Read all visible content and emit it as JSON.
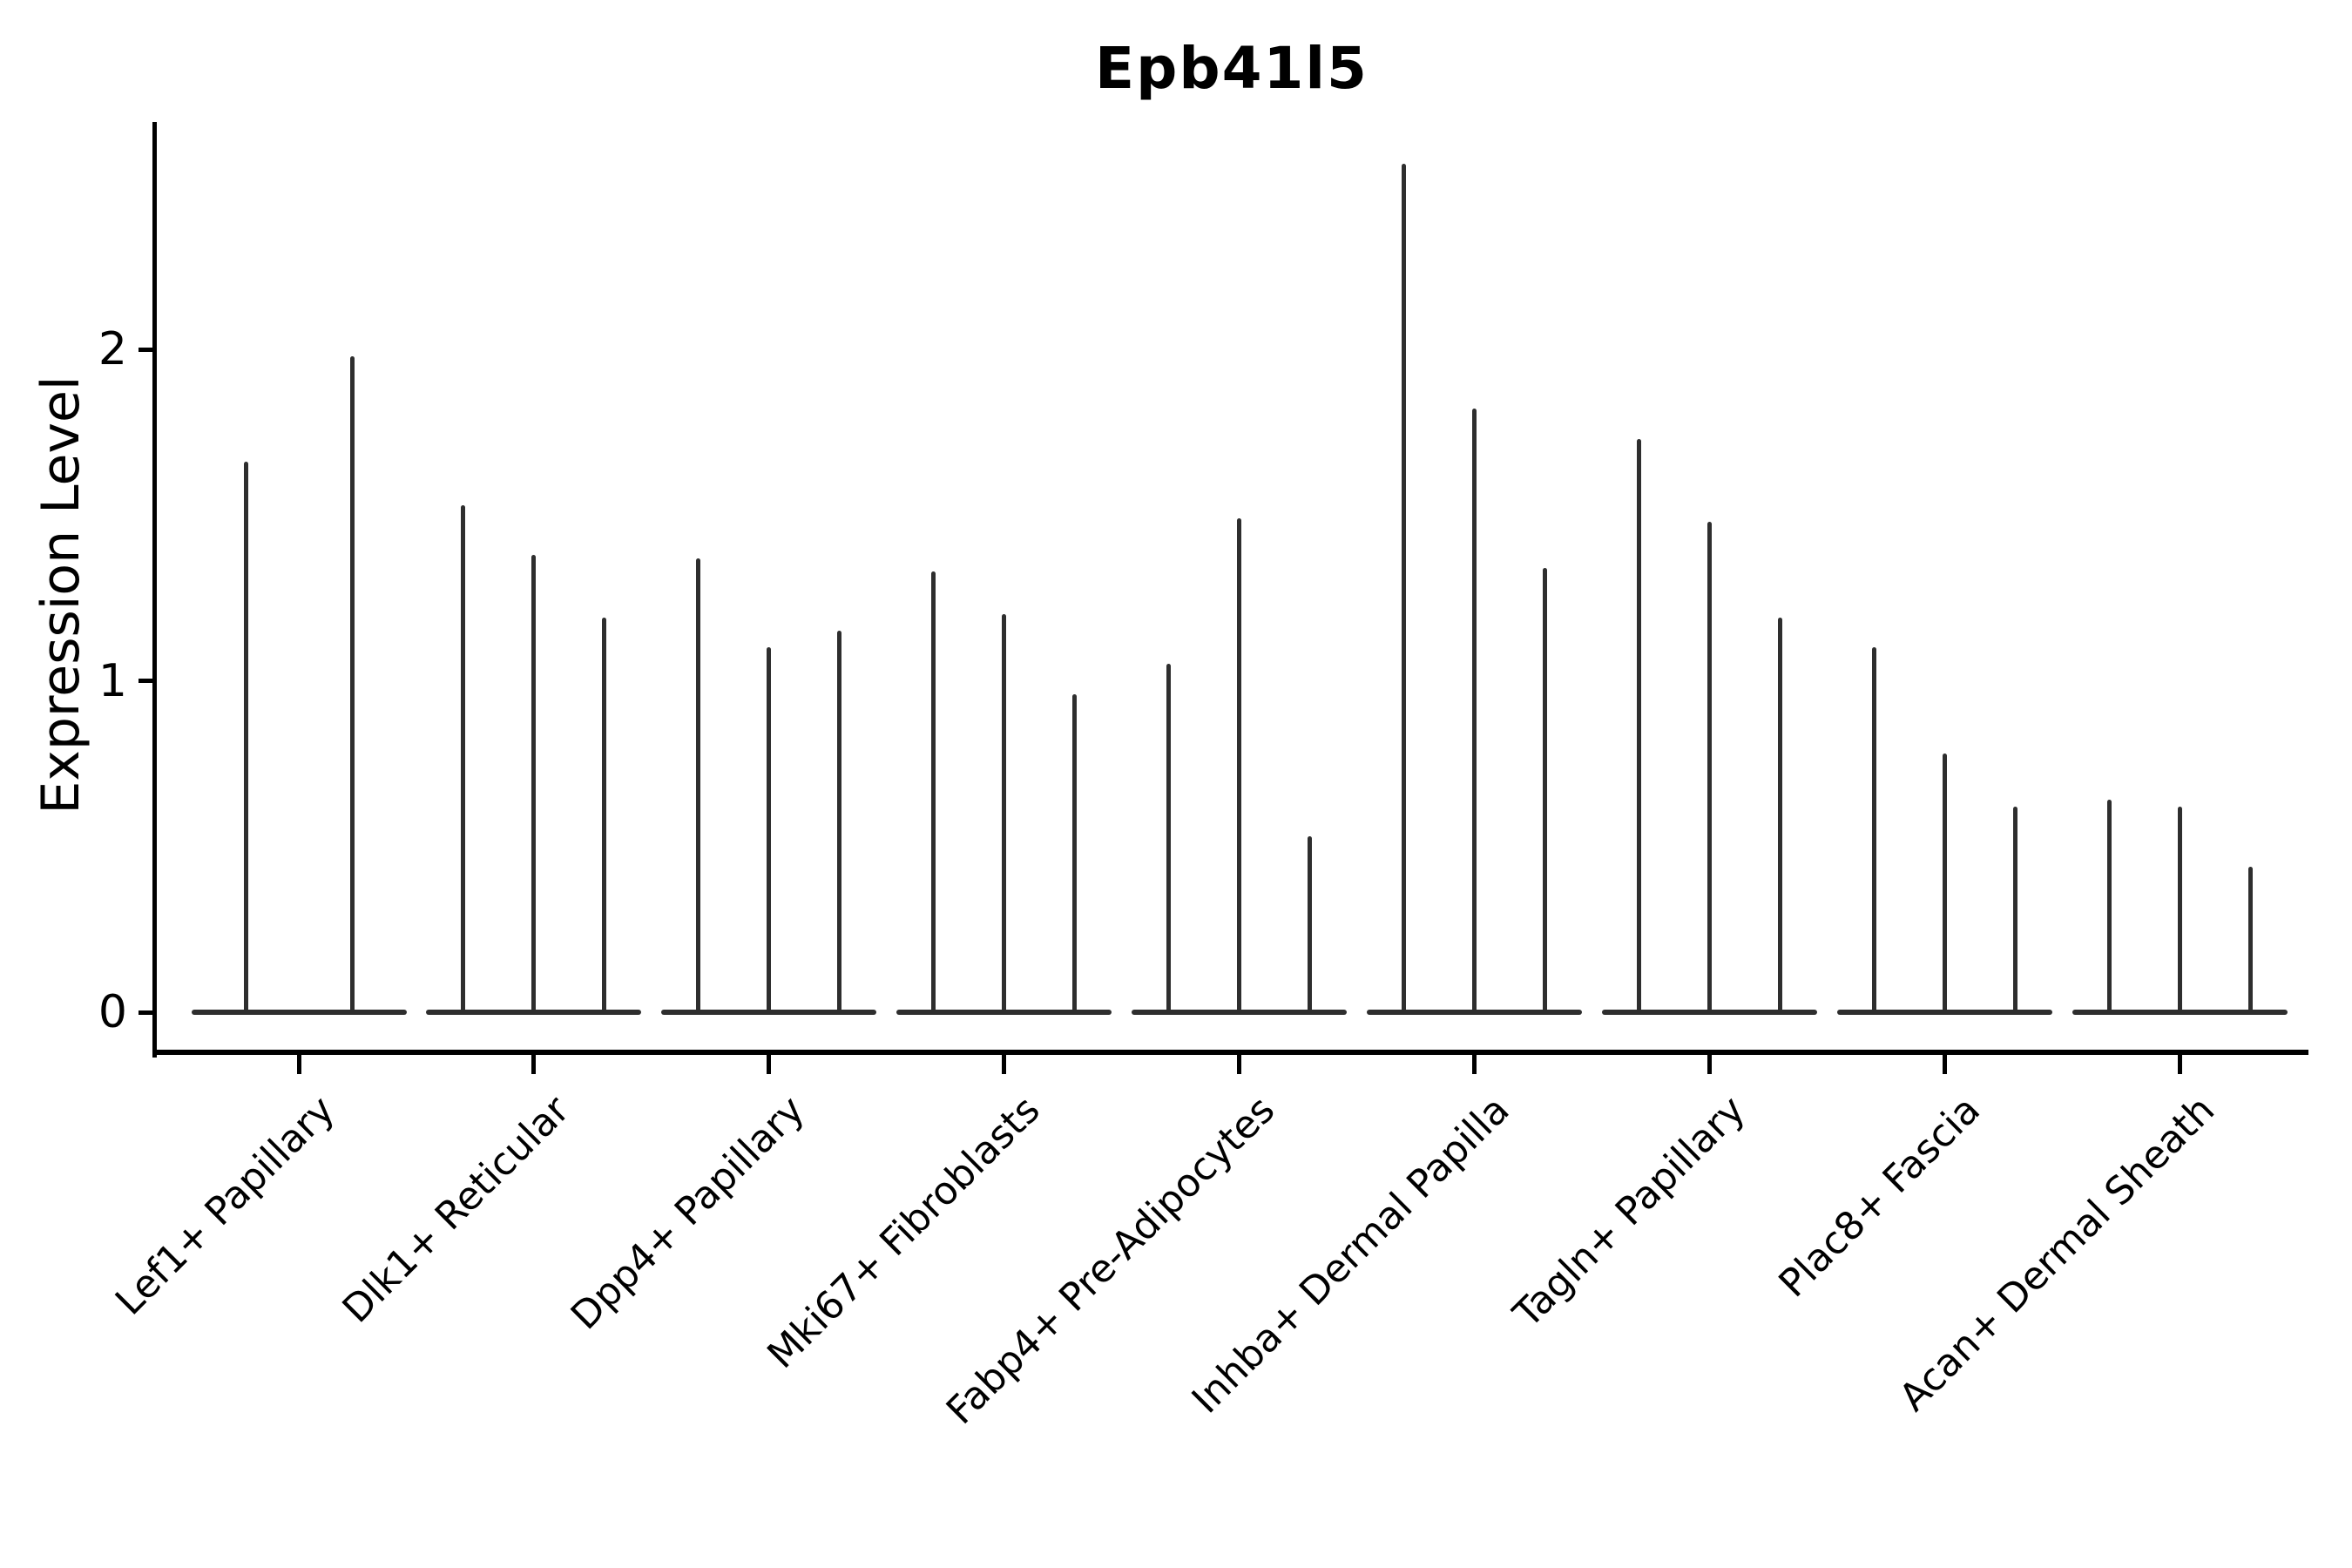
{
  "figure": {
    "background_color": "#ffffff",
    "text_color": "#000000",
    "spine_color": "#000000",
    "violin_color": "#2e2e2e"
  },
  "chart_data": {
    "type": "violin",
    "title": "Epb41l5",
    "title_bold": true,
    "xlabel": "",
    "ylabel": "Expression Level",
    "yticks": [
      0,
      1,
      2
    ],
    "ytick_labels": [
      "0",
      "1",
      "2"
    ],
    "ylim": [
      -0.12,
      2.69
    ],
    "grid": false,
    "legend": "none",
    "x_tick_rotation_deg": 45,
    "style_note": "single-cell expression violin plot: each violin collapses to a thin vertical density spike rising from a wide flat base at zero expression",
    "categories": [
      "Lef1+ Papillary",
      "Dlk1+ Reticular",
      "Dpp4+ Papillary",
      "Mki67+ Fibroblasts",
      "Fabp4+ Pre-Adipocytes",
      "Inhba+ Dermal Papilla",
      "Tagln+ Papillary",
      "Plac8+ Fascia",
      "Acan+ Dermal Sheath"
    ],
    "groups": [
      {
        "category": "Lef1+ Papillary",
        "violin_peak_values": [
          1.66,
          1.98
        ]
      },
      {
        "category": "Dlk1+ Reticular",
        "violin_peak_values": [
          1.53,
          1.38,
          1.19
        ]
      },
      {
        "category": "Dpp4+ Papillary",
        "violin_peak_values": [
          1.37,
          1.1,
          1.15
        ]
      },
      {
        "category": "Mki67+ Fibroblasts",
        "violin_peak_values": [
          1.33,
          1.2,
          0.96
        ]
      },
      {
        "category": "Fabp4+ Pre-Adipocytes",
        "violin_peak_values": [
          1.05,
          1.49,
          0.53
        ]
      },
      {
        "category": "Inhba+ Dermal Papilla",
        "violin_peak_values": [
          2.56,
          1.82,
          1.34
        ]
      },
      {
        "category": "Tagln+ Papillary",
        "violin_peak_values": [
          1.73,
          1.48,
          1.19
        ]
      },
      {
        "category": "Plac8+ Fascia",
        "violin_peak_values": [
          1.1,
          0.78,
          0.62
        ]
      },
      {
        "category": "Acan+ Dermal Sheath",
        "violin_peak_values": [
          0.64,
          0.62,
          0.44
        ]
      }
    ]
  }
}
